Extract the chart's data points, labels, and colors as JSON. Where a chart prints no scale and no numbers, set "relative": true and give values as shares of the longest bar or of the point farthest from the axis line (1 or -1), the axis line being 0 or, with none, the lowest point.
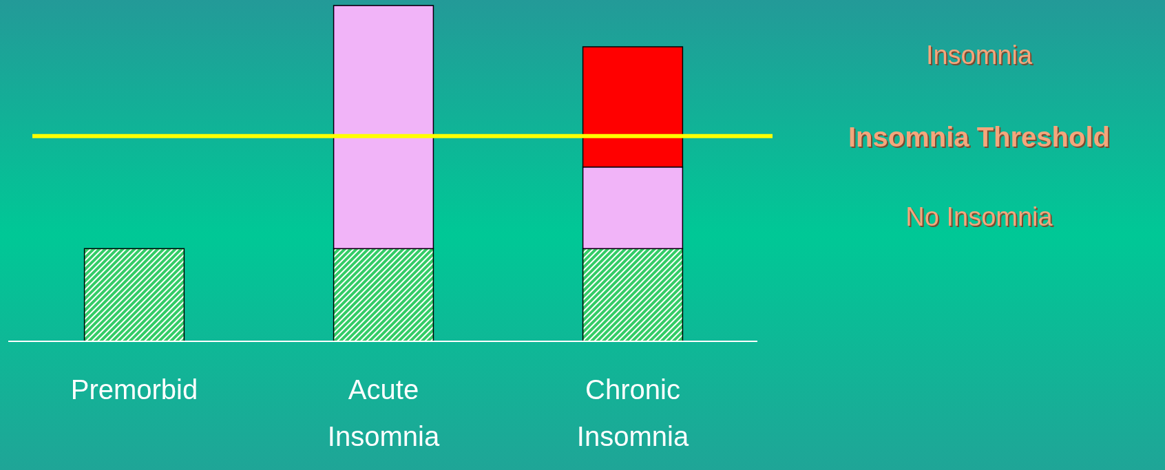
{
  "chart_data": {
    "type": "bar",
    "stacked": true,
    "relative": true,
    "categories": [
      "Premorbid",
      "Acute Insomnia",
      "Chronic Insomnia"
    ],
    "series": [
      {
        "color": "#33cc66",
        "values": [
          0.276,
          0.276,
          0.276
        ]
      },
      {
        "color": "#dd44ee",
        "values": [
          null,
          0.724,
          0.243
        ]
      },
      {
        "color": "#ff0000",
        "values": [
          null,
          null,
          0.358
        ]
      }
    ],
    "ref_lines": [
      {
        "axis": "y",
        "value": 0.611,
        "label": "Insomnia Threshold",
        "color": "#ffff00"
      }
    ],
    "annotations": [
      "Insomnia",
      "No Insomnia"
    ]
  }
}
